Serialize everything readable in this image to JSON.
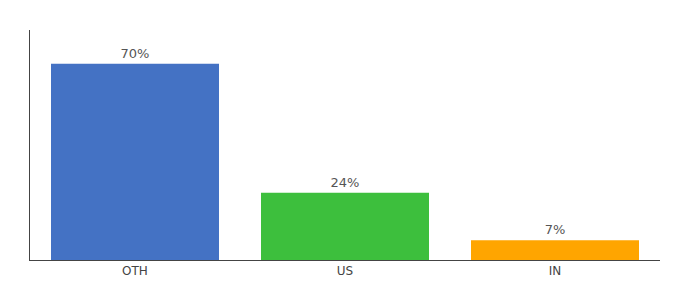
{
  "chart_data": {
    "type": "bar",
    "categories": [
      "OTH",
      "US",
      "IN"
    ],
    "values": [
      70,
      24,
      7
    ],
    "value_labels": [
      "70%",
      "24%",
      "7%"
    ],
    "colors": [
      "#4472C4",
      "#3DBF3D",
      "#FFA500"
    ],
    "ylim": [
      0,
      82
    ],
    "data_labels": true,
    "tick_labels": "x",
    "grid": false
  }
}
